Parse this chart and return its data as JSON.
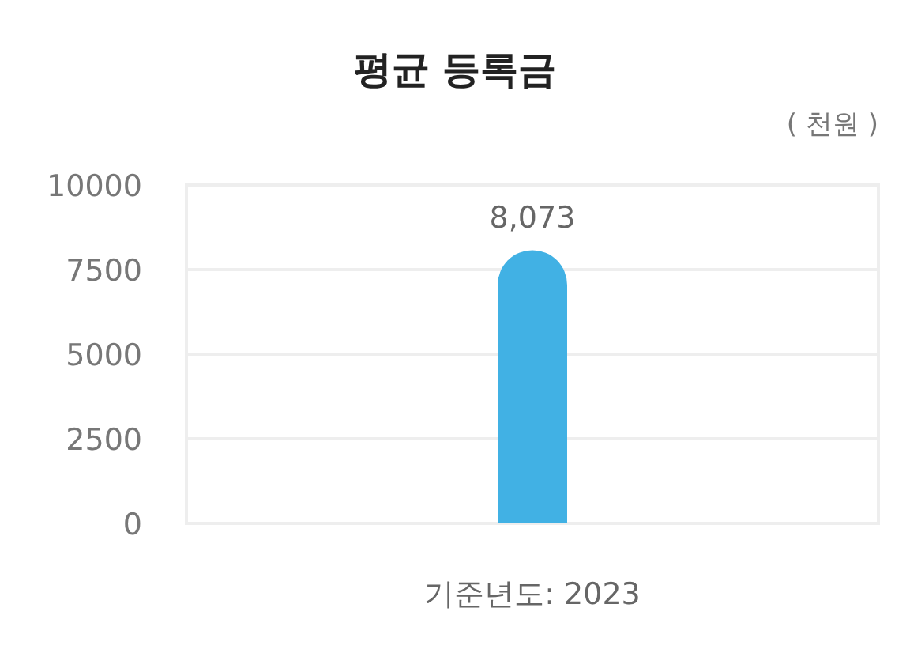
{
  "chart_data": {
    "type": "bar",
    "title": "평균 등록금",
    "ylabel": "( 천원 )",
    "categories": [
      "기준년도: 2023"
    ],
    "values": [
      8073
    ],
    "value_labels": [
      "8,073"
    ],
    "color": "#41b1e4",
    "ylim": [
      0,
      10000
    ],
    "yticks": [
      0,
      2500,
      5000,
      7500,
      10000
    ],
    "grid": "y"
  }
}
